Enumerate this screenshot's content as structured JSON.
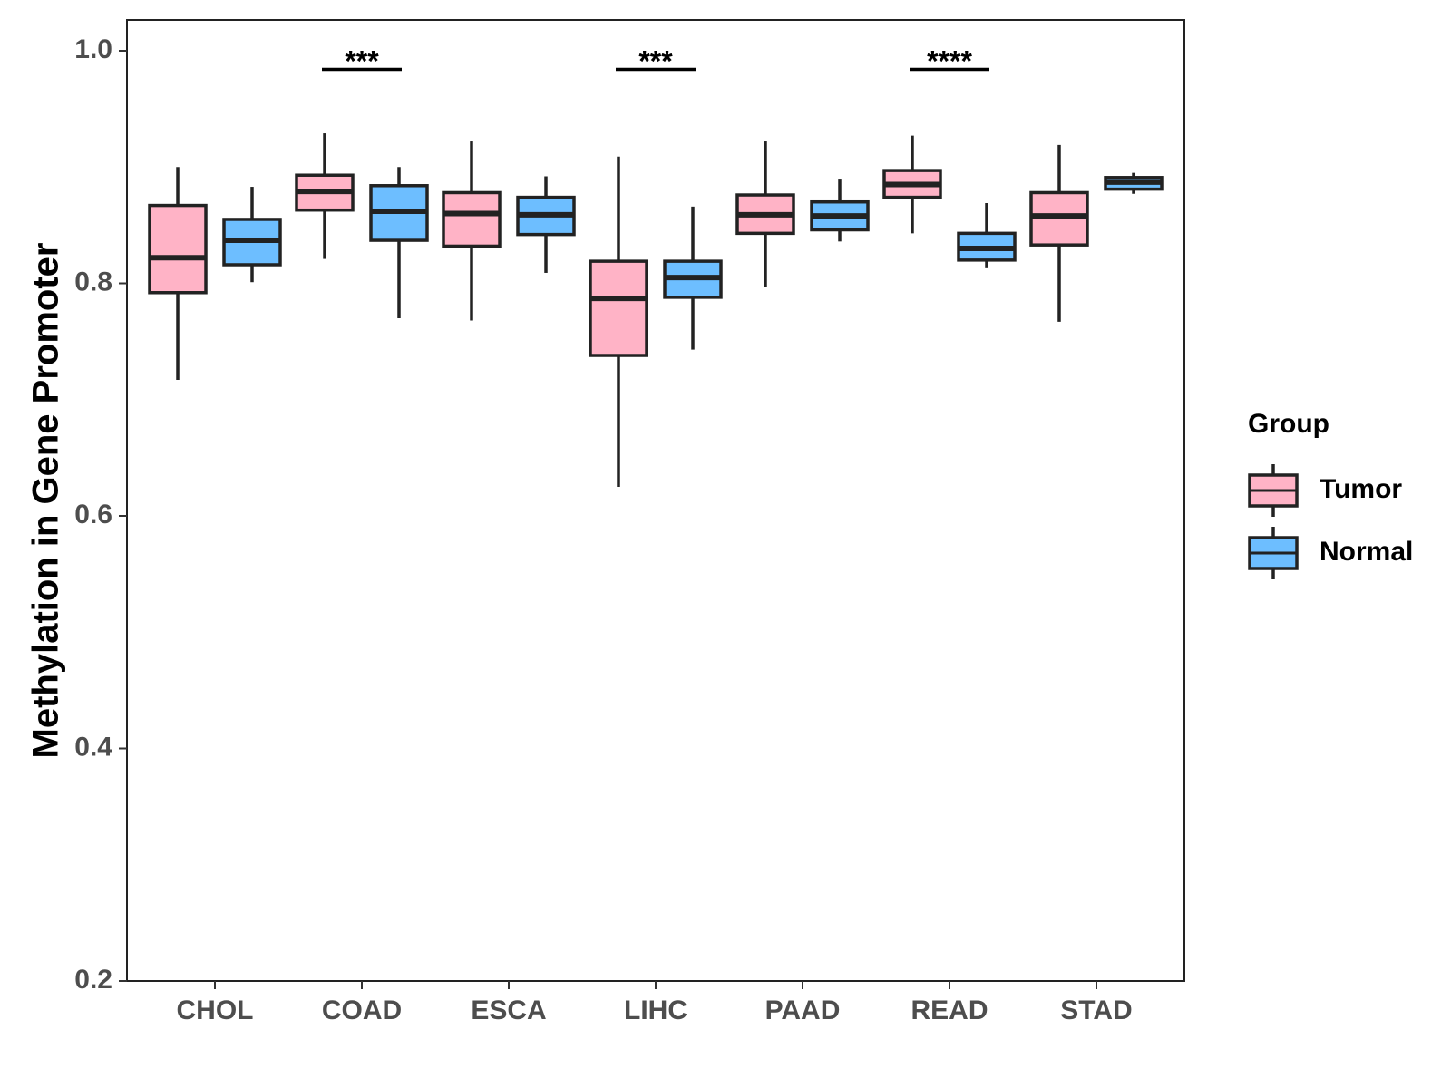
{
  "chart_data": {
    "type": "boxplot",
    "title": "",
    "xlabel": "",
    "ylabel": "Methylation in Gene Promoter",
    "ylim": [
      0.2,
      1.025
    ],
    "yticks": [
      "0.2",
      "0.4",
      "0.6",
      "0.8",
      "1.0"
    ],
    "categories": [
      "CHOL",
      "COAD",
      "ESCA",
      "LIHC",
      "PAAD",
      "READ",
      "STAD"
    ],
    "legend": {
      "title": "Group",
      "position": "right",
      "items": [
        {
          "name": "Tumor",
          "color": "#FFB3C6"
        },
        {
          "name": "Normal",
          "color": "#6DBEFF"
        }
      ]
    },
    "series": [
      {
        "name": "Tumor",
        "color": "#FFB3C6",
        "boxes": [
          {
            "min": 0.717,
            "q1": 0.792,
            "median": 0.822,
            "q3": 0.867,
            "max": 0.9
          },
          {
            "min": 0.821,
            "q1": 0.863,
            "median": 0.879,
            "q3": 0.893,
            "max": 0.929
          },
          {
            "min": 0.768,
            "q1": 0.832,
            "median": 0.86,
            "q3": 0.878,
            "max": 0.922
          },
          {
            "min": 0.625,
            "q1": 0.738,
            "median": 0.787,
            "q3": 0.819,
            "max": 0.909
          },
          {
            "min": 0.797,
            "q1": 0.843,
            "median": 0.859,
            "q3": 0.876,
            "max": 0.922
          },
          {
            "min": 0.843,
            "q1": 0.874,
            "median": 0.885,
            "q3": 0.897,
            "max": 0.927
          },
          {
            "min": 0.767,
            "q1": 0.833,
            "median": 0.858,
            "q3": 0.878,
            "max": 0.919
          }
        ]
      },
      {
        "name": "Normal",
        "color": "#6DBEFF",
        "boxes": [
          {
            "min": 0.801,
            "q1": 0.816,
            "median": 0.837,
            "q3": 0.855,
            "max": 0.883
          },
          {
            "min": 0.77,
            "q1": 0.837,
            "median": 0.862,
            "q3": 0.884,
            "max": 0.9
          },
          {
            "min": 0.809,
            "q1": 0.842,
            "median": 0.859,
            "q3": 0.874,
            "max": 0.892
          },
          {
            "min": 0.743,
            "q1": 0.788,
            "median": 0.805,
            "q3": 0.819,
            "max": 0.866
          },
          {
            "min": 0.836,
            "q1": 0.846,
            "median": 0.858,
            "q3": 0.87,
            "max": 0.89
          },
          {
            "min": 0.813,
            "q1": 0.82,
            "median": 0.83,
            "q3": 0.843,
            "max": 0.869
          },
          {
            "min": 0.877,
            "q1": 0.881,
            "median": 0.887,
            "q3": 0.891,
            "max": 0.895
          }
        ]
      }
    ],
    "annotations": [
      {
        "category": "COAD",
        "label": "***",
        "y": 0.984
      },
      {
        "category": "LIHC",
        "label": "***",
        "y": 0.984
      },
      {
        "category": "READ",
        "label": "****",
        "y": 0.984
      }
    ]
  }
}
